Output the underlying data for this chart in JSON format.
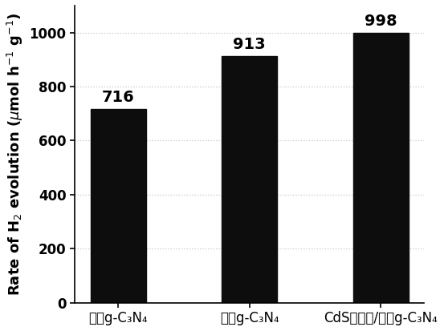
{
  "categories_plain": [
    "块状g-C₃N₄",
    "超薄g-C₃N₄",
    "CdS量子点/超薄g-C₃N₄"
  ],
  "values": [
    716,
    913,
    998
  ],
  "bar_color": "#0d0d0d",
  "bar_width": 0.42,
  "value_labels": [
    "716",
    "913",
    "998"
  ],
  "ylabel": "Rate of H$_2$ evolution ($\\mu$mol h$^{-1}$ g$^{-1}$)",
  "ylim": [
    0,
    1100
  ],
  "yticks": [
    0,
    200,
    400,
    600,
    800,
    1000
  ],
  "label_fontsize": 13,
  "tick_fontsize": 12,
  "value_label_fontsize": 14,
  "background_color": "#ffffff",
  "grid_color": "#c8c8c8"
}
